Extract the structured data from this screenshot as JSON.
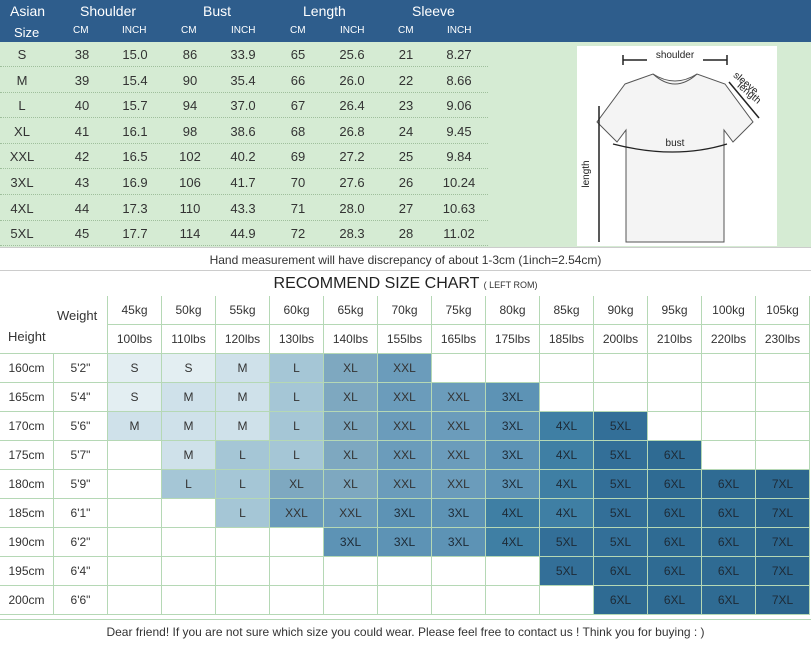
{
  "header": {
    "asian": "Asian",
    "size": "Size",
    "shoulder": "Shoulder",
    "bust": "Bust",
    "length": "Length",
    "sleeve": "Sleeve",
    "cm": "CM",
    "inch": "INCH"
  },
  "size_rows": [
    [
      "S",
      "38",
      "15.0",
      "86",
      "33.9",
      "65",
      "25.6",
      "21",
      "8.27"
    ],
    [
      "M",
      "39",
      "15.4",
      "90",
      "35.4",
      "66",
      "26.0",
      "22",
      "8.66"
    ],
    [
      "L",
      "40",
      "15.7",
      "94",
      "37.0",
      "67",
      "26.4",
      "23",
      "9.06"
    ],
    [
      "XL",
      "41",
      "16.1",
      "98",
      "38.6",
      "68",
      "26.8",
      "24",
      "9.45"
    ],
    [
      "XXL",
      "42",
      "16.5",
      "102",
      "40.2",
      "69",
      "27.2",
      "25",
      "9.84"
    ],
    [
      "3XL",
      "43",
      "16.9",
      "106",
      "41.7",
      "70",
      "27.6",
      "26",
      "10.24"
    ],
    [
      "4XL",
      "44",
      "17.3",
      "110",
      "43.3",
      "71",
      "28.0",
      "27",
      "10.63"
    ],
    [
      "5XL",
      "45",
      "17.7",
      "114",
      "44.9",
      "72",
      "28.3",
      "28",
      "11.02"
    ]
  ],
  "sketch": {
    "shoulder": "shoulder",
    "sleeve": "sleeve",
    "sleeve_length": "length",
    "bust": "bust",
    "length": "length"
  },
  "note": "Hand measurement will have discrepancy of about 1-3cm (1inch=2.54cm)",
  "recommend": {
    "title": "RECOMMEND SIZE CHART",
    "sub": "( LEFT ROM)"
  },
  "grid": {
    "weight_label": "Weight",
    "height_label": "Height",
    "kg": [
      "45kg",
      "50kg",
      "55kg",
      "60kg",
      "65kg",
      "70kg",
      "75kg",
      "80kg",
      "85kg",
      "90kg",
      "95kg",
      "100kg",
      "105kg"
    ],
    "lbs": [
      "100lbs",
      "110lbs",
      "120lbs",
      "130lbs",
      "140lbs",
      "155lbs",
      "165lbs",
      "175lbs",
      "185lbs",
      "200lbs",
      "210lbs",
      "220lbs",
      "230lbs"
    ],
    "heights": [
      {
        "cm": "160cm",
        "ft": "5'2\"",
        "sizes": [
          "S",
          "S",
          "M",
          "L",
          "XL",
          "XXL",
          "",
          "",
          "",
          "",
          "",
          "",
          ""
        ]
      },
      {
        "cm": "165cm",
        "ft": "5'4\"",
        "sizes": [
          "S",
          "M",
          "M",
          "L",
          "XL",
          "XXL",
          "XXL",
          "3XL",
          "",
          "",
          "",
          "",
          ""
        ]
      },
      {
        "cm": "170cm",
        "ft": "5'6\"",
        "sizes": [
          "M",
          "M",
          "M",
          "L",
          "XL",
          "XXL",
          "XXL",
          "3XL",
          "4XL",
          "5XL",
          "",
          "",
          ""
        ]
      },
      {
        "cm": "175cm",
        "ft": "5'7\"",
        "sizes": [
          "",
          "M",
          "L",
          "L",
          "XL",
          "XXL",
          "XXL",
          "3XL",
          "4XL",
          "5XL",
          "6XL",
          "",
          ""
        ]
      },
      {
        "cm": "180cm",
        "ft": "5'9\"",
        "sizes": [
          "",
          "L",
          "L",
          "XL",
          "XL",
          "XXL",
          "XXL",
          "3XL",
          "4XL",
          "5XL",
          "6XL",
          "6XL",
          "7XL"
        ]
      },
      {
        "cm": "185cm",
        "ft": "6'1\"",
        "sizes": [
          "",
          "",
          "L",
          "XXL",
          "XXL",
          "3XL",
          "3XL",
          "4XL",
          "4XL",
          "5XL",
          "6XL",
          "6XL",
          "7XL"
        ]
      },
      {
        "cm": "190cm",
        "ft": "6'2\"",
        "sizes": [
          "",
          "",
          "",
          "",
          "3XL",
          "3XL",
          "3XL",
          "4XL",
          "5XL",
          "5XL",
          "6XL",
          "6XL",
          "7XL"
        ]
      },
      {
        "cm": "195cm",
        "ft": "6'4\"",
        "sizes": [
          "",
          "",
          "",
          "",
          "",
          "",
          "",
          "",
          "5XL",
          "6XL",
          "6XL",
          "6XL",
          "7XL"
        ]
      },
      {
        "cm": "200cm",
        "ft": "6'6\"",
        "sizes": [
          "",
          "",
          "",
          "",
          "",
          "",
          "",
          "",
          "",
          "6XL",
          "6XL",
          "6XL",
          "7XL"
        ]
      }
    ]
  },
  "colors": {
    "header_blue": "#2e5d8c",
    "top_green": "#d5ebd3",
    "S": "#e3eef2",
    "M": "#cfe1ea",
    "L": "#a5c6d6",
    "XL": "#7ea8c0",
    "XXL": "#6b9cbb",
    "3XL": "#5d93b5",
    "4XL": "#3f7fa4",
    "5XL": "#336f98",
    "6XL": "#2f6b93",
    "7XL": "#2c668e"
  },
  "footer": "Dear friend! If you are not sure which size you could wear. Please feel free to contact us ! Think you for buying : )"
}
